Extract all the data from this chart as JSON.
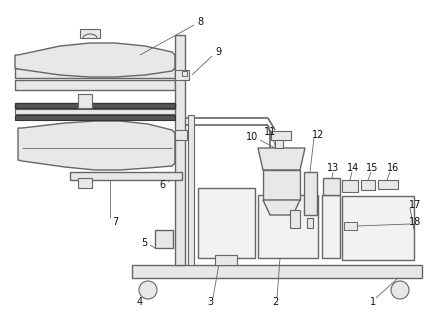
{
  "bg_color": "#ffffff",
  "line_color": "#666666",
  "dark_color": "#333333",
  "gray_fill": "#e8e8e8",
  "light_fill": "#f2f2f2",
  "dark_band": "#555555",
  "fig_w": 4.41,
  "fig_h": 3.14,
  "dpi": 100
}
